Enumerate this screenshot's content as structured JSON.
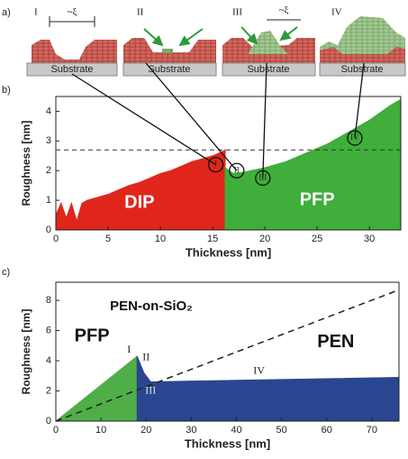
{
  "panel_labels": [
    "a)",
    "b)",
    "c)"
  ],
  "schematic": {
    "stages": [
      "I",
      "II",
      "III",
      "IV"
    ],
    "length_label": "~ξ",
    "substrate": [
      "Substrate",
      "Substrate",
      "Substrate",
      "Substrate"
    ]
  },
  "chart_data": [
    {
      "type": "area",
      "x_label": "Thickness [nm]",
      "y_label": "Roughness [nm]",
      "xlim": [
        0,
        33
      ],
      "ylim": [
        0,
        4.5
      ],
      "xticks": [
        0,
        5,
        10,
        15,
        20,
        25,
        30
      ],
      "yticks": [
        0,
        1,
        2,
        3,
        4
      ],
      "reference_y": 2.7,
      "markers": [
        "I",
        "II",
        "III",
        "IV"
      ],
      "series": [
        {
          "name": "DIP",
          "color": "#e0261b",
          "x": [
            0,
            0.5,
            1,
            1.5,
            2,
            2.5,
            3,
            4,
            5,
            6,
            7,
            8,
            9,
            10,
            11,
            12,
            13,
            14,
            15,
            16,
            16.2
          ],
          "values": [
            0.5,
            0.9,
            0.4,
            0.9,
            0.3,
            0.9,
            1.0,
            1.1,
            1.2,
            1.35,
            1.5,
            1.6,
            1.75,
            1.9,
            2.0,
            2.15,
            2.3,
            2.4,
            2.5,
            2.65,
            2.7
          ]
        },
        {
          "name": "PFP",
          "color": "#3fae3a",
          "x": [
            16.2,
            17,
            18,
            20,
            22,
            24,
            26,
            28,
            30,
            32,
            33
          ],
          "values": [
            2.1,
            1.9,
            1.95,
            2.1,
            2.3,
            2.6,
            2.9,
            3.3,
            3.7,
            4.2,
            4.4
          ]
        }
      ]
    },
    {
      "type": "area",
      "x_label": "Thickness [nm]",
      "y_label": "Roughness [nm]",
      "xlim": [
        0,
        76
      ],
      "ylim": [
        0,
        9.2
      ],
      "xticks": [
        0,
        10,
        20,
        30,
        40,
        50,
        60,
        70
      ],
      "yticks": [
        0,
        2,
        4,
        6,
        8
      ],
      "annotations": [
        "I",
        "II",
        "III",
        "IV"
      ],
      "series": [
        {
          "name": "PFP",
          "color": "#4fae48",
          "x": [
            0,
            18
          ],
          "values": [
            0,
            4.3
          ]
        },
        {
          "name": "PEN",
          "color": "#2a4690",
          "x": [
            18,
            19.5,
            21,
            30,
            76
          ],
          "values": [
            4.3,
            3.2,
            2.6,
            2.65,
            2.9
          ]
        },
        {
          "name": "PEN-on-SiO₂",
          "style": "dashed",
          "color": "#222222",
          "x": [
            0,
            76
          ],
          "values": [
            0,
            8.7
          ]
        }
      ]
    }
  ]
}
